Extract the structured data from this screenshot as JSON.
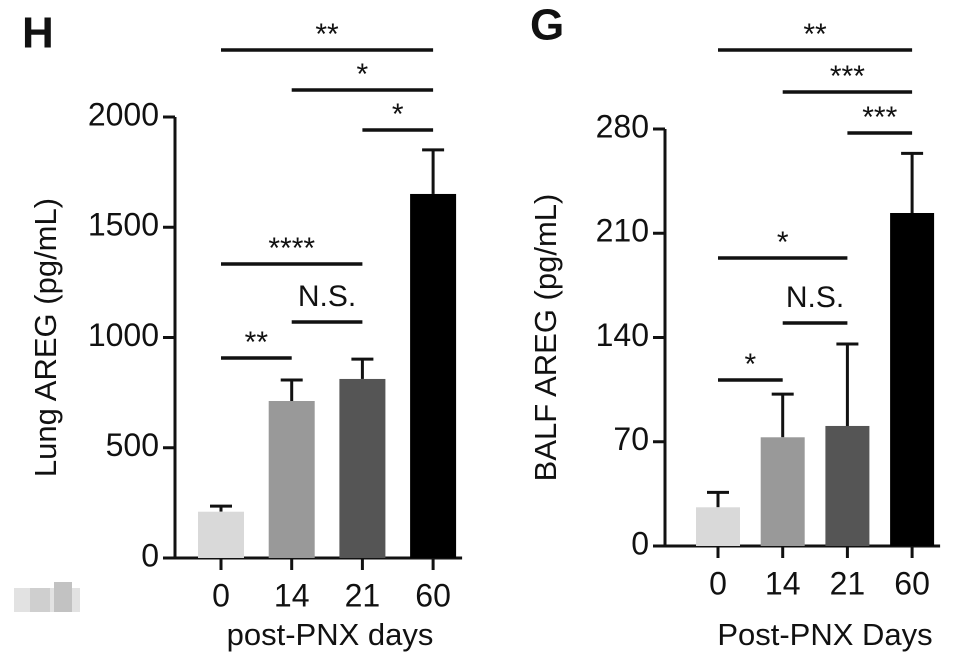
{
  "chart_data": [
    {
      "type": "bar",
      "panel": "H",
      "categories": [
        "0",
        "14",
        "21",
        "60"
      ],
      "values": [
        210,
        712,
        812,
        1651
      ],
      "errors": [
        25,
        95,
        90,
        200
      ],
      "colors": [
        "#d9d9d9",
        "#999999",
        "#555555",
        "#000000"
      ],
      "ylabel": "Lung AREG (pg/mL)",
      "xlabel": "post-PNX days",
      "ylim": [
        0,
        2000
      ],
      "yticks": [
        0,
        500,
        1000,
        1500,
        2000
      ],
      "significance": [
        {
          "from": 0,
          "to": 3,
          "label": "**"
        },
        {
          "from": 1,
          "to": 3,
          "label": "*"
        },
        {
          "from": 2,
          "to": 3,
          "label": "*"
        },
        {
          "from": 0,
          "to": 2,
          "label": "****"
        },
        {
          "from": 1,
          "to": 2,
          "label": "N.S."
        },
        {
          "from": 0,
          "to": 1,
          "label": "**"
        }
      ]
    },
    {
      "type": "bar",
      "panel": "G",
      "categories": [
        "0",
        "14",
        "21",
        "60"
      ],
      "values": [
        26,
        73,
        80.6,
        223.6
      ],
      "errors": [
        10,
        29,
        55,
        40
      ],
      "colors": [
        "#d9d9d9",
        "#999999",
        "#555555",
        "#000000"
      ],
      "ylabel": "BALF AREG (pg/mL)",
      "xlabel": "Post-PNX Days",
      "ylim": [
        0,
        280
      ],
      "yticks": [
        0,
        70,
        140,
        210,
        280
      ],
      "significance": [
        {
          "from": 0,
          "to": 3,
          "label": "**"
        },
        {
          "from": 1,
          "to": 3,
          "label": "***"
        },
        {
          "from": 2,
          "to": 3,
          "label": "***"
        },
        {
          "from": 0,
          "to": 2,
          "label": "*"
        },
        {
          "from": 1,
          "to": 2,
          "label": "N.S."
        },
        {
          "from": 0,
          "to": 1,
          "label": "*"
        }
      ]
    }
  ]
}
